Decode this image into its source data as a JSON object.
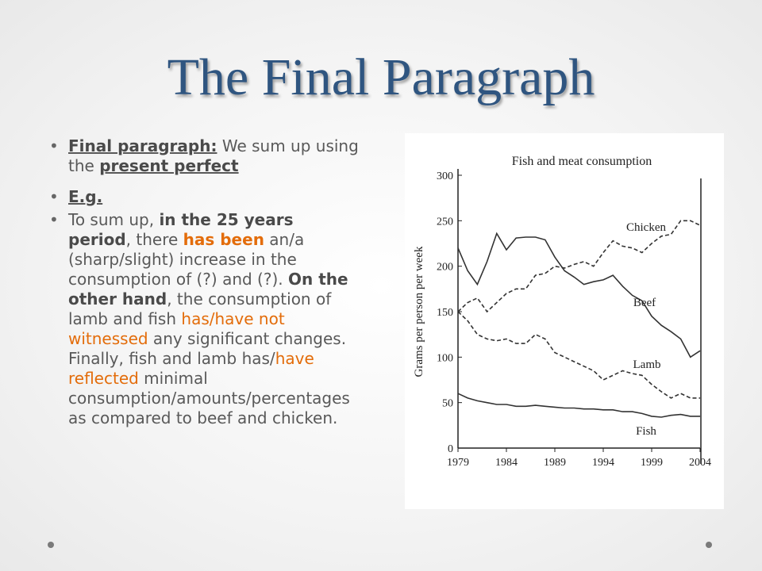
{
  "slide": {
    "title": "The Final Paragraph",
    "bullets": [
      [
        "Final paragraph:",
        " We sum up using the ",
        "present perfect"
      ],
      [
        "E.g."
      ],
      [
        "To sum up, ",
        "in the 25 years period",
        ", there ",
        "has been",
        " an/a (sharp/slight) increase in the consumption of (?) and (?). ",
        "On the other hand",
        ", the consumption of lamb and fish ",
        "has/have not witnessed",
        " any significant changes. Finally, fish and lamb has/",
        "have reflected",
        " minimal consumption/amounts/percentages as compared to beef and chicken."
      ]
    ]
  },
  "chart_data": {
    "type": "line",
    "title": "Fish and meat consumption",
    "y_label": "Grams per person per week",
    "x": [
      1979,
      1980,
      1981,
      1982,
      1983,
      1984,
      1985,
      1986,
      1987,
      1988,
      1989,
      1990,
      1991,
      1992,
      1993,
      1994,
      1995,
      1996,
      1997,
      1998,
      1999,
      2000,
      2001,
      2002,
      2003,
      2004
    ],
    "xlim": [
      1979,
      2004
    ],
    "xticks": [
      1979,
      1984,
      1989,
      1994,
      1999,
      2004
    ],
    "ylim": [
      0,
      300
    ],
    "yticks": [
      0,
      50,
      100,
      150,
      200,
      250,
      300
    ],
    "series": [
      {
        "name": "Chicken",
        "color": "#333333",
        "dashed": true,
        "values": [
          150,
          160,
          165,
          150,
          160,
          170,
          175,
          175,
          190,
          192,
          200,
          198,
          202,
          205,
          200,
          215,
          228,
          222,
          220,
          215,
          225,
          233,
          235,
          250,
          250,
          245
        ]
      },
      {
        "name": "Beef",
        "color": "#333333",
        "dashed": false,
        "values": [
          220,
          195,
          180,
          205,
          236,
          218,
          231,
          232,
          232,
          229,
          210,
          195,
          188,
          180,
          183,
          185,
          190,
          178,
          168,
          162,
          145,
          135,
          128,
          120,
          100,
          107
        ]
      },
      {
        "name": "Lamb",
        "color": "#333333",
        "dashed": true,
        "values": [
          150,
          140,
          125,
          120,
          118,
          120,
          115,
          115,
          125,
          120,
          105,
          100,
          95,
          90,
          85,
          75,
          80,
          85,
          82,
          80,
          70,
          62,
          55,
          60,
          55,
          55
        ]
      },
      {
        "name": "Fish",
        "color": "#333333",
        "dashed": false,
        "values": [
          60,
          55,
          52,
          50,
          48,
          48,
          46,
          46,
          47,
          46,
          45,
          44,
          44,
          43,
          43,
          42,
          42,
          40,
          40,
          38,
          35,
          34,
          36,
          37,
          35,
          35
        ]
      }
    ]
  }
}
